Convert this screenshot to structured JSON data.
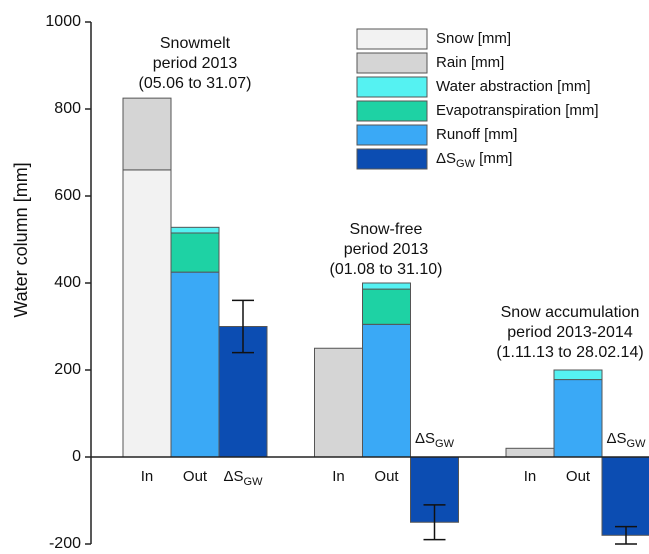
{
  "chart_data": {
    "type": "stacked_bar",
    "ylabel": "Water column [mm]",
    "ylim": [
      -200,
      1000
    ],
    "yticks": [
      -200,
      0,
      200,
      400,
      600,
      800,
      1000
    ],
    "categories": [
      "In",
      "Out",
      [
        "ΔS",
        "GW"
      ],
      "In",
      "Out",
      [
        "ΔS",
        "GW"
      ],
      "In",
      "Out",
      [
        "ΔS",
        "GW"
      ]
    ],
    "annotations": [
      [
        "Snowmelt",
        "period 2013",
        "(05.06 to 31.07)"
      ],
      [
        "Snow-free",
        "period  2013",
        "(01.08 to 31.10)"
      ],
      [
        "Snow accumulation",
        "period 2013-2014",
        "(1.11.13 to 28.02.14)"
      ]
    ],
    "series": [
      {
        "name": "Snow [mm]",
        "color": "#f2f2f2",
        "values": [
          660,
          null,
          null,
          null,
          null,
          null,
          null,
          null,
          null
        ]
      },
      {
        "name": "Rain [mm]",
        "color": "#d5d5d5",
        "values": [
          165,
          null,
          null,
          250,
          null,
          null,
          20,
          null,
          null
        ]
      },
      {
        "name": "Water abstraction [mm]",
        "color": "#55f2f2",
        "values": [
          null,
          13,
          null,
          null,
          14,
          null,
          null,
          22,
          null
        ]
      },
      {
        "name": "Evapotranspiration [mm]",
        "color": "#1ed2a4",
        "values": [
          null,
          90,
          null,
          null,
          81,
          null,
          null,
          null,
          null
        ]
      },
      {
        "name": "Runoff [mm]",
        "color": "#3aa9f6",
        "values": [
          null,
          425,
          null,
          null,
          305,
          null,
          null,
          178,
          null
        ]
      },
      {
        "name": [
          "ΔS",
          "GW",
          " [mm]"
        ],
        "color": "#0c4db2",
        "values": [
          null,
          null,
          300,
          null,
          null,
          -150,
          null,
          null,
          -180
        ],
        "errors": [
          null,
          null,
          60,
          null,
          null,
          40,
          null,
          null,
          20
        ]
      }
    ]
  }
}
